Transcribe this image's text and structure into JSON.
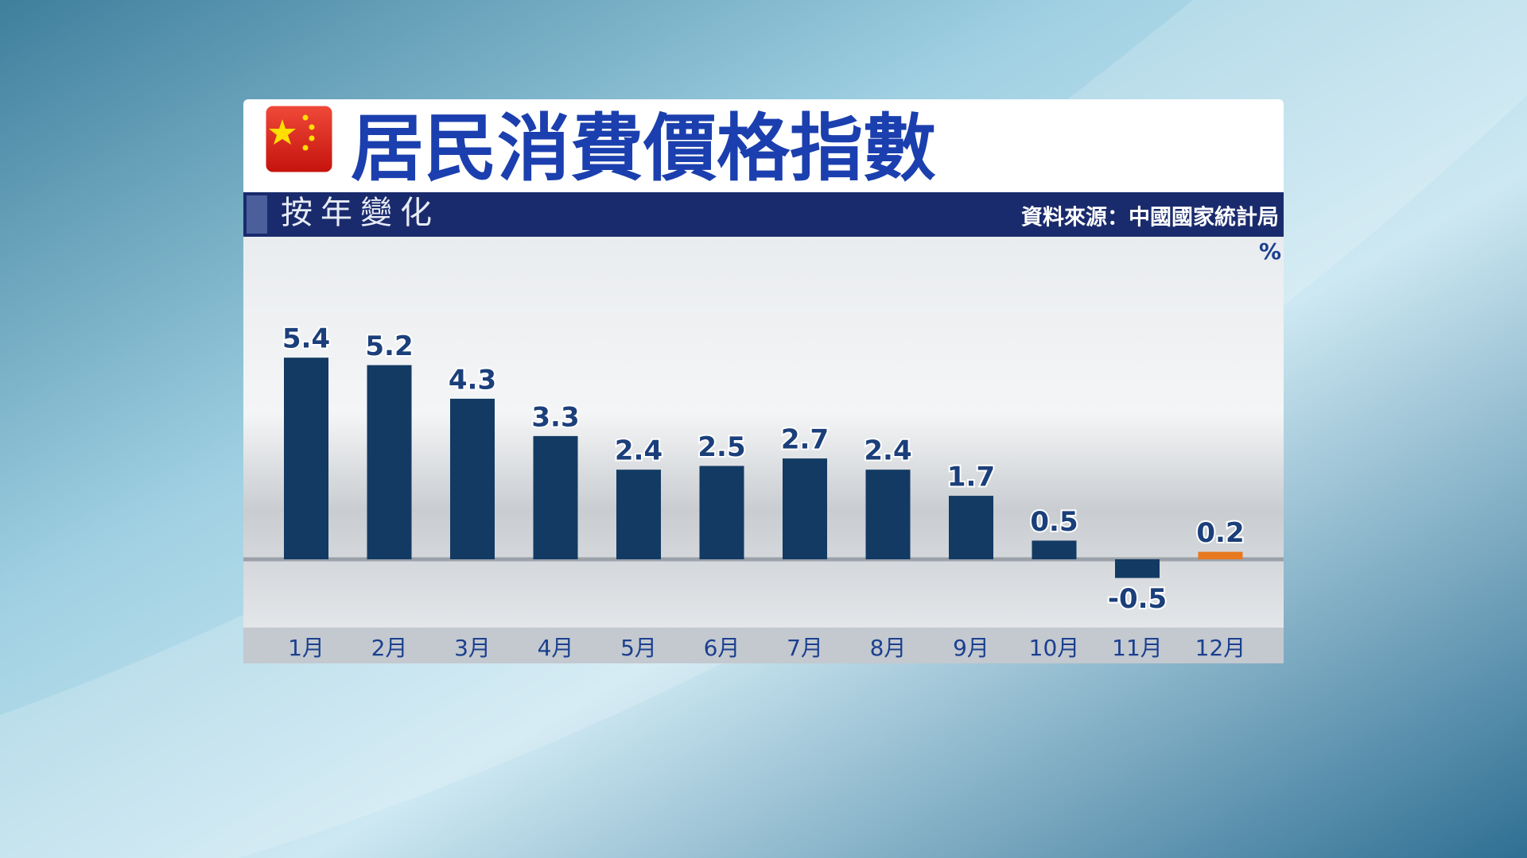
{
  "chart_data": {
    "type": "bar",
    "title": "居民消費價格指數",
    "subtitle": "按年變化",
    "source": "資料來源：中國國家統計局",
    "unit": "%",
    "categories": [
      "1月",
      "2月",
      "3月",
      "4月",
      "5月",
      "6月",
      "7月",
      "8月",
      "9月",
      "10月",
      "11月",
      "12月"
    ],
    "values": [
      5.4,
      5.2,
      4.3,
      3.3,
      2.4,
      2.5,
      2.7,
      2.4,
      1.7,
      0.5,
      -0.5,
      0.2
    ],
    "colors": [
      "#123a63",
      "#123a63",
      "#123a63",
      "#123a63",
      "#123a63",
      "#123a63",
      "#123a63",
      "#123a63",
      "#123a63",
      "#123a63",
      "#123a63",
      "#e8791f"
    ]
  }
}
